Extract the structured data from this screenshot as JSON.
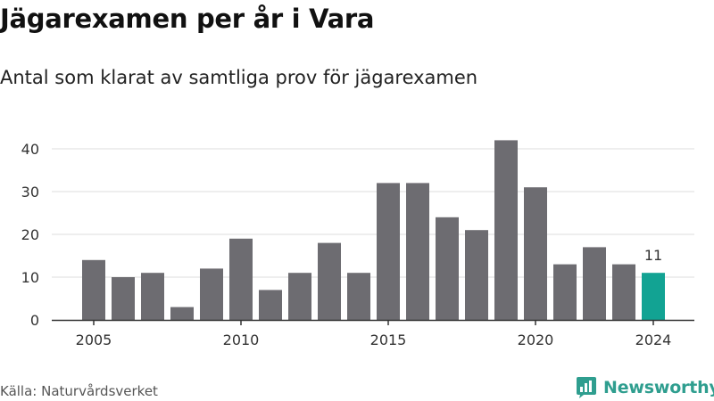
{
  "title": "Jägarexamen per år i Vara",
  "subtitle": "Antal som klarat av samtliga prov för jägarexamen",
  "source": "Källa: Naturvårdsverket",
  "brand": {
    "name": "Newsworthy",
    "icon": "newsworthy-logo-icon"
  },
  "colors": {
    "bar": "#6d6c71",
    "highlight": "#12a393",
    "brand": "#2f9e8f",
    "grid": "#dddddd",
    "axis": "#333333"
  },
  "chart_data": {
    "type": "bar",
    "x": [
      2005,
      2006,
      2007,
      2008,
      2009,
      2010,
      2011,
      2012,
      2013,
      2014,
      2015,
      2016,
      2017,
      2018,
      2019,
      2020,
      2021,
      2022,
      2023,
      2024
    ],
    "values": [
      14,
      10,
      11,
      3,
      12,
      19,
      7,
      11,
      18,
      11,
      32,
      32,
      24,
      21,
      42,
      31,
      13,
      17,
      13,
      11
    ],
    "x_tick_labels": [
      "2005",
      "2010",
      "2015",
      "2020",
      "2024"
    ],
    "y_ticks": [
      0,
      10,
      20,
      30,
      40
    ],
    "ylim": [
      0,
      42
    ],
    "grid": true,
    "highlight": {
      "x": 2024,
      "label": "11"
    }
  }
}
